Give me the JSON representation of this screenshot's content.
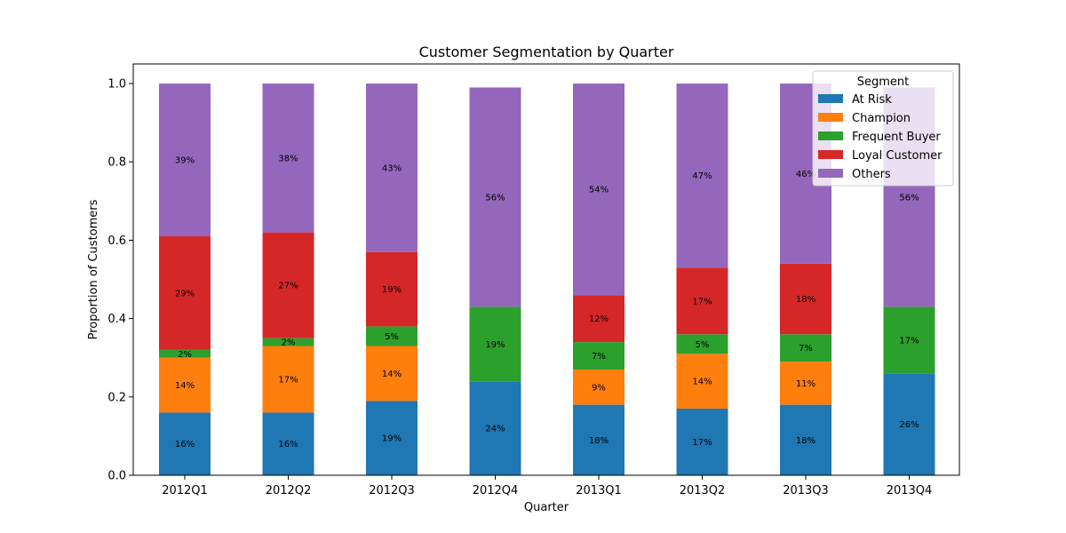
{
  "chart_data": {
    "type": "bar",
    "stacked": true,
    "title": "Customer Segmentation by Quarter",
    "xlabel": "Quarter",
    "ylabel": "Proportion of Customers",
    "ylim": [
      0,
      1.05
    ],
    "yticks": [
      "0.0",
      "0.2",
      "0.4",
      "0.6",
      "0.8",
      "1.0"
    ],
    "ytick_values": [
      0,
      0.2,
      0.4,
      0.6,
      0.8,
      1.0
    ],
    "categories": [
      "2012Q1",
      "2012Q2",
      "2012Q3",
      "2012Q4",
      "2013Q1",
      "2013Q2",
      "2013Q3",
      "2013Q4"
    ],
    "series": [
      {
        "name": "At Risk",
        "color": "#1f77b4",
        "values": [
          0.16,
          0.16,
          0.19,
          0.24,
          0.18,
          0.17,
          0.18,
          0.26
        ],
        "labels": [
          "16%",
          "16%",
          "19%",
          "24%",
          "18%",
          "17%",
          "18%",
          "26%"
        ]
      },
      {
        "name": "Champion",
        "color": "#ff7f0e",
        "values": [
          0.14,
          0.17,
          0.14,
          0.0,
          0.09,
          0.14,
          0.11,
          0.0
        ],
        "labels": [
          "14%",
          "17%",
          "14%",
          "",
          "9%",
          "14%",
          "11%",
          ""
        ]
      },
      {
        "name": "Frequent Buyer",
        "color": "#2ca02c",
        "values": [
          0.02,
          0.02,
          0.05,
          0.19,
          0.07,
          0.05,
          0.07,
          0.17
        ],
        "labels": [
          "2%",
          "2%",
          "5%",
          "19%",
          "7%",
          "5%",
          "7%",
          "17%"
        ]
      },
      {
        "name": "Loyal Customer",
        "color": "#d62728",
        "values": [
          0.29,
          0.27,
          0.19,
          0.0,
          0.12,
          0.17,
          0.18,
          0.0
        ],
        "labels": [
          "29%",
          "27%",
          "19%",
          "",
          "12%",
          "17%",
          "18%",
          ""
        ]
      },
      {
        "name": "Others",
        "color": "#9467bd",
        "values": [
          0.39,
          0.38,
          0.43,
          0.56,
          0.54,
          0.47,
          0.46,
          0.56
        ],
        "labels": [
          "39%",
          "38%",
          "43%",
          "56%",
          "54%",
          "47%",
          "46%",
          "56%"
        ]
      }
    ],
    "legend": {
      "title": "Segment",
      "position": "top-right"
    },
    "grid": false
  }
}
